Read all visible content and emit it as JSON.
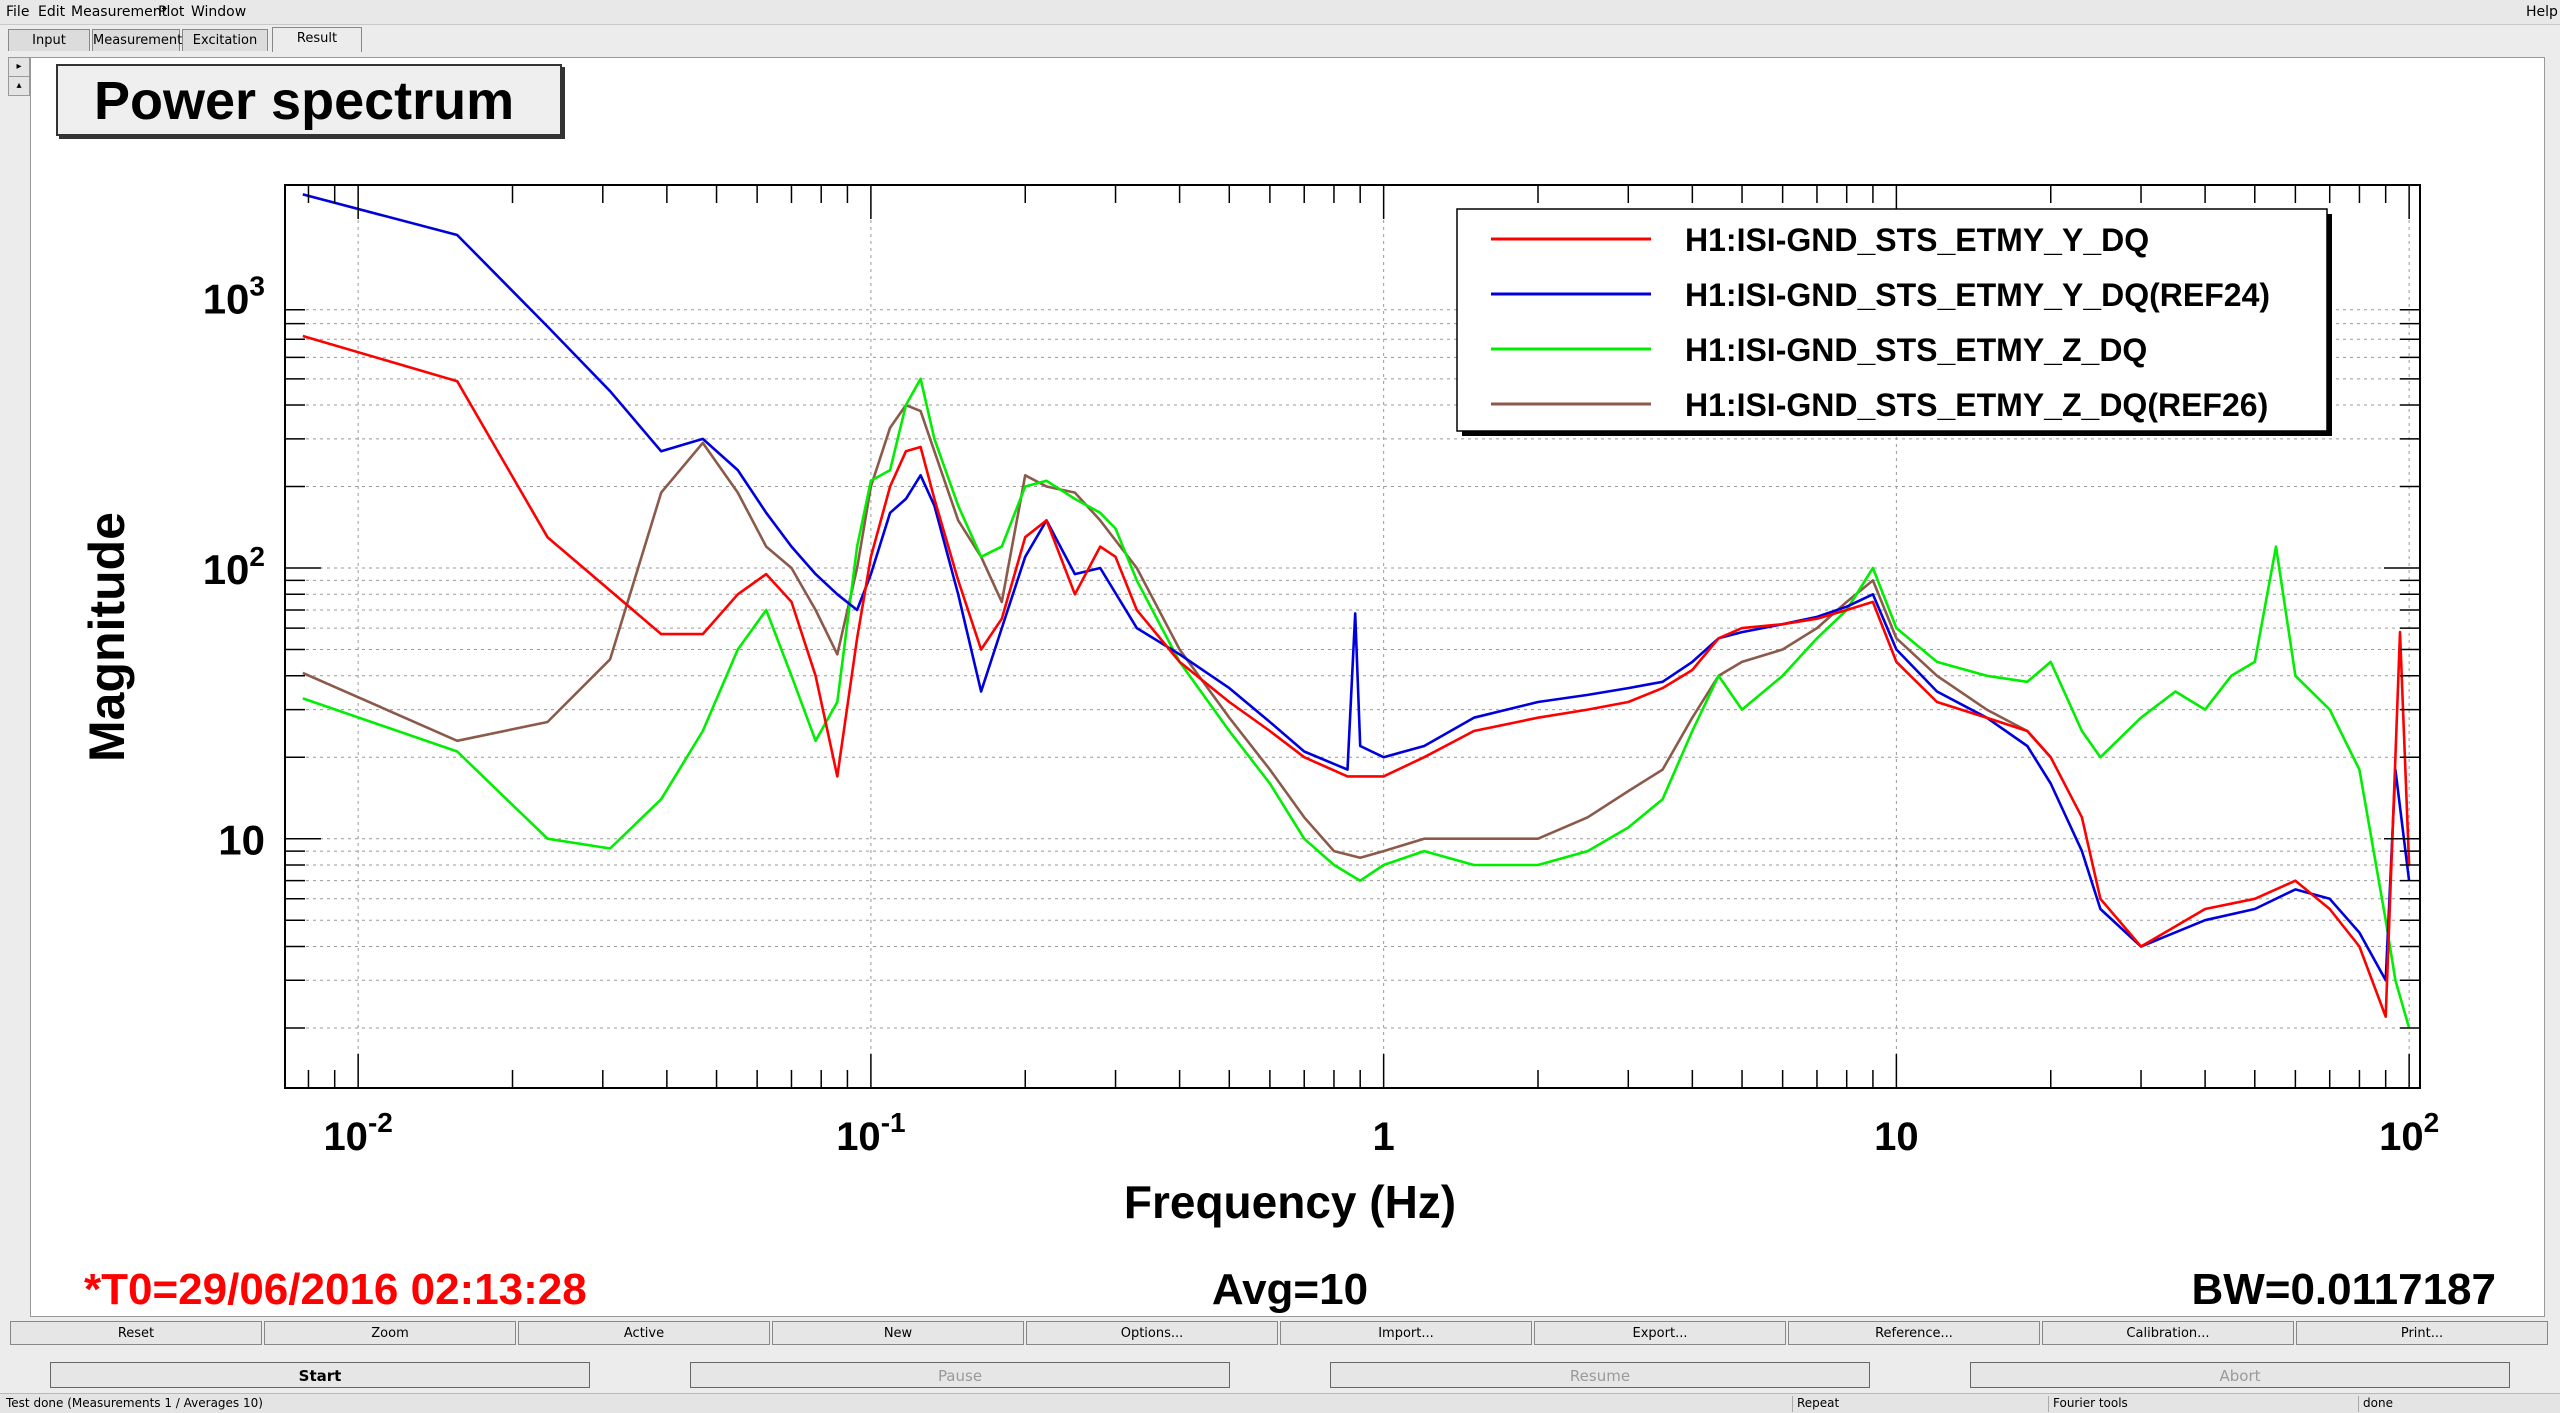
{
  "menu": {
    "items": [
      "File",
      "Edit",
      "Measurement",
      "Plot",
      "Window"
    ],
    "help": "Help"
  },
  "tabs": [
    "Input",
    "Measurement",
    "Excitation",
    "Result"
  ],
  "plot_title": "Power spectrum",
  "footer": {
    "t0": "*T0=29/06/2016 02:13:28",
    "avg": "Avg=10",
    "bw": "BW=0.0117187"
  },
  "buttons_row1": [
    "Reset",
    "Zoom",
    "Active",
    "New",
    "Options...",
    "Import...",
    "Export...",
    "Reference...",
    "Calibration...",
    "Print..."
  ],
  "buttons_row2": [
    {
      "label": "Start",
      "enabled": true
    },
    {
      "label": "Pause",
      "enabled": false
    },
    {
      "label": "Resume",
      "enabled": false
    },
    {
      "label": "Abort",
      "enabled": false
    }
  ],
  "statusbar": {
    "message": "Test done (Measurements 1 / Averages 10)",
    "repeat": "Repeat",
    "tool": "Fourier tools",
    "state": "done"
  },
  "colors": {
    "red": "#ff0000",
    "blue": "#0000dd",
    "green": "#00ee00",
    "brown": "#8b5a4a"
  },
  "chart_data": {
    "type": "line",
    "title": "Power spectrum",
    "xlabel": "Frequency (Hz)",
    "ylabel": "Magnitude",
    "xscale": "log",
    "yscale": "log",
    "xlim": [
      0.0072,
      105
    ],
    "ylim": [
      1.2,
      2600
    ],
    "x_ticks": [
      {
        "value": 0.01,
        "base": "10",
        "exp": "-2"
      },
      {
        "value": 0.1,
        "base": "10",
        "exp": "-1"
      },
      {
        "value": 1,
        "base": "1",
        "exp": ""
      },
      {
        "value": 10,
        "base": "10",
        "exp": ""
      },
      {
        "value": 100,
        "base": "10",
        "exp": "2"
      }
    ],
    "y_ticks": [
      {
        "value": 10,
        "base": "10",
        "exp": ""
      },
      {
        "value": 100,
        "base": "10",
        "exp": "2"
      },
      {
        "value": 1000,
        "base": "10",
        "exp": "3"
      }
    ],
    "grid": true,
    "legend_position": "top-right",
    "series": [
      {
        "name": "H1:ISI-GND_STS_ETMY_Y_DQ",
        "color": "#ff0000",
        "points": [
          [
            0.0078,
            720
          ],
          [
            0.0156,
            490
          ],
          [
            0.0234,
            130
          ],
          [
            0.039,
            57
          ],
          [
            0.047,
            57
          ],
          [
            0.055,
            80
          ],
          [
            0.0625,
            95
          ],
          [
            0.07,
            75
          ],
          [
            0.078,
            40
          ],
          [
            0.086,
            17
          ],
          [
            0.094,
            55
          ],
          [
            0.1,
            110
          ],
          [
            0.109,
            200
          ],
          [
            0.117,
            270
          ],
          [
            0.125,
            280
          ],
          [
            0.133,
            180
          ],
          [
            0.148,
            90
          ],
          [
            0.164,
            50
          ],
          [
            0.18,
            65
          ],
          [
            0.2,
            130
          ],
          [
            0.22,
            150
          ],
          [
            0.25,
            80
          ],
          [
            0.28,
            120
          ],
          [
            0.3,
            110
          ],
          [
            0.33,
            70
          ],
          [
            0.4,
            45
          ],
          [
            0.5,
            32
          ],
          [
            0.6,
            25
          ],
          [
            0.7,
            20
          ],
          [
            0.85,
            17
          ],
          [
            1,
            17
          ],
          [
            1.2,
            20
          ],
          [
            1.5,
            25
          ],
          [
            2,
            28
          ],
          [
            2.5,
            30
          ],
          [
            3,
            32
          ],
          [
            3.5,
            36
          ],
          [
            4,
            42
          ],
          [
            4.5,
            55
          ],
          [
            5,
            60
          ],
          [
            6,
            62
          ],
          [
            7,
            65
          ],
          [
            8,
            70
          ],
          [
            9,
            75
          ],
          [
            10,
            45
          ],
          [
            12,
            32
          ],
          [
            15,
            28
          ],
          [
            18,
            25
          ],
          [
            20,
            20
          ],
          [
            23,
            12
          ],
          [
            25,
            6
          ],
          [
            30,
            4
          ],
          [
            40,
            5.5
          ],
          [
            50,
            6
          ],
          [
            60,
            7
          ],
          [
            70,
            5.5
          ],
          [
            80,
            4
          ],
          [
            90,
            2.2
          ],
          [
            94,
            20
          ],
          [
            96,
            58
          ],
          [
            100,
            8
          ]
        ]
      },
      {
        "name": "H1:ISI-GND_STS_ETMY_Y_DQ(REF24)",
        "color": "#0000dd",
        "points": [
          [
            0.0078,
            2400
          ],
          [
            0.0156,
            1700
          ],
          [
            0.0234,
            780
          ],
          [
            0.031,
            450
          ],
          [
            0.039,
            270
          ],
          [
            0.047,
            300
          ],
          [
            0.055,
            230
          ],
          [
            0.0625,
            160
          ],
          [
            0.07,
            120
          ],
          [
            0.078,
            95
          ],
          [
            0.086,
            80
          ],
          [
            0.094,
            70
          ],
          [
            0.1,
            95
          ],
          [
            0.109,
            160
          ],
          [
            0.117,
            180
          ],
          [
            0.125,
            220
          ],
          [
            0.133,
            170
          ],
          [
            0.148,
            80
          ],
          [
            0.164,
            35
          ],
          [
            0.18,
            60
          ],
          [
            0.2,
            110
          ],
          [
            0.22,
            150
          ],
          [
            0.25,
            95
          ],
          [
            0.28,
            100
          ],
          [
            0.33,
            60
          ],
          [
            0.4,
            48
          ],
          [
            0.5,
            36
          ],
          [
            0.6,
            27
          ],
          [
            0.7,
            21
          ],
          [
            0.85,
            18
          ],
          [
            0.88,
            68
          ],
          [
            0.9,
            22
          ],
          [
            1,
            20
          ],
          [
            1.2,
            22
          ],
          [
            1.5,
            28
          ],
          [
            2,
            32
          ],
          [
            2.5,
            34
          ],
          [
            3,
            36
          ],
          [
            3.5,
            38
          ],
          [
            4,
            45
          ],
          [
            4.5,
            55
          ],
          [
            5,
            58
          ],
          [
            6,
            62
          ],
          [
            7,
            66
          ],
          [
            8,
            72
          ],
          [
            9,
            80
          ],
          [
            10,
            50
          ],
          [
            12,
            35
          ],
          [
            15,
            28
          ],
          [
            18,
            22
          ],
          [
            20,
            16
          ],
          [
            23,
            9
          ],
          [
            25,
            5.5
          ],
          [
            30,
            4
          ],
          [
            40,
            5
          ],
          [
            50,
            5.5
          ],
          [
            60,
            6.5
          ],
          [
            70,
            6
          ],
          [
            80,
            4.5
          ],
          [
            90,
            3
          ],
          [
            94,
            18
          ],
          [
            100,
            7
          ]
        ]
      },
      {
        "name": "H1:ISI-GND_STS_ETMY_Z_DQ",
        "color": "#00ee00",
        "points": [
          [
            0.0078,
            33
          ],
          [
            0.0156,
            21
          ],
          [
            0.0234,
            10
          ],
          [
            0.031,
            9.2
          ],
          [
            0.039,
            14
          ],
          [
            0.047,
            25
          ],
          [
            0.055,
            50
          ],
          [
            0.0625,
            70
          ],
          [
            0.07,
            40
          ],
          [
            0.078,
            23
          ],
          [
            0.086,
            32
          ],
          [
            0.094,
            120
          ],
          [
            0.1,
            210
          ],
          [
            0.109,
            230
          ],
          [
            0.117,
            400
          ],
          [
            0.125,
            500
          ],
          [
            0.133,
            300
          ],
          [
            0.148,
            170
          ],
          [
            0.164,
            110
          ],
          [
            0.18,
            120
          ],
          [
            0.2,
            200
          ],
          [
            0.22,
            210
          ],
          [
            0.25,
            180
          ],
          [
            0.28,
            160
          ],
          [
            0.3,
            140
          ],
          [
            0.33,
            90
          ],
          [
            0.4,
            45
          ],
          [
            0.5,
            25
          ],
          [
            0.6,
            16
          ],
          [
            0.7,
            10
          ],
          [
            0.8,
            8
          ],
          [
            0.9,
            7
          ],
          [
            1,
            8
          ],
          [
            1.2,
            9
          ],
          [
            1.5,
            8
          ],
          [
            2,
            8
          ],
          [
            2.5,
            9
          ],
          [
            3,
            11
          ],
          [
            3.5,
            14
          ],
          [
            4,
            25
          ],
          [
            4.5,
            40
          ],
          [
            5,
            30
          ],
          [
            6,
            40
          ],
          [
            7,
            55
          ],
          [
            8,
            70
          ],
          [
            9,
            100
          ],
          [
            10,
            60
          ],
          [
            12,
            45
          ],
          [
            15,
            40
          ],
          [
            18,
            38
          ],
          [
            20,
            45
          ],
          [
            23,
            25
          ],
          [
            25,
            20
          ],
          [
            30,
            28
          ],
          [
            35,
            35
          ],
          [
            40,
            30
          ],
          [
            45,
            40
          ],
          [
            50,
            45
          ],
          [
            55,
            120
          ],
          [
            60,
            40
          ],
          [
            70,
            30
          ],
          [
            80,
            18
          ],
          [
            90,
            5
          ],
          [
            94,
            3
          ],
          [
            100,
            2
          ]
        ]
      },
      {
        "name": "H1:ISI-GND_STS_ETMY_Z_DQ(REF26)",
        "color": "#8b5a4a",
        "points": [
          [
            0.0078,
            41
          ],
          [
            0.0156,
            23
          ],
          [
            0.0234,
            27
          ],
          [
            0.031,
            46
          ],
          [
            0.039,
            190
          ],
          [
            0.047,
            290
          ],
          [
            0.055,
            190
          ],
          [
            0.0625,
            120
          ],
          [
            0.07,
            100
          ],
          [
            0.078,
            70
          ],
          [
            0.086,
            48
          ],
          [
            0.094,
            100
          ],
          [
            0.1,
            200
          ],
          [
            0.109,
            330
          ],
          [
            0.117,
            400
          ],
          [
            0.125,
            380
          ],
          [
            0.133,
            270
          ],
          [
            0.148,
            150
          ],
          [
            0.164,
            110
          ],
          [
            0.18,
            75
          ],
          [
            0.2,
            220
          ],
          [
            0.22,
            200
          ],
          [
            0.25,
            190
          ],
          [
            0.28,
            150
          ],
          [
            0.33,
            100
          ],
          [
            0.4,
            50
          ],
          [
            0.5,
            28
          ],
          [
            0.6,
            18
          ],
          [
            0.7,
            12
          ],
          [
            0.8,
            9
          ],
          [
            0.9,
            8.5
          ],
          [
            1,
            9
          ],
          [
            1.2,
            10
          ],
          [
            1.5,
            10
          ],
          [
            2,
            10
          ],
          [
            2.5,
            12
          ],
          [
            3,
            15
          ],
          [
            3.5,
            18
          ],
          [
            4,
            28
          ],
          [
            4.5,
            40
          ],
          [
            5,
            45
          ],
          [
            6,
            50
          ],
          [
            7,
            60
          ],
          [
            8,
            75
          ],
          [
            9,
            90
          ],
          [
            10,
            55
          ],
          [
            12,
            40
          ],
          [
            15,
            30
          ],
          [
            18,
            25
          ],
          [
            20,
            20
          ]
        ]
      }
    ]
  }
}
